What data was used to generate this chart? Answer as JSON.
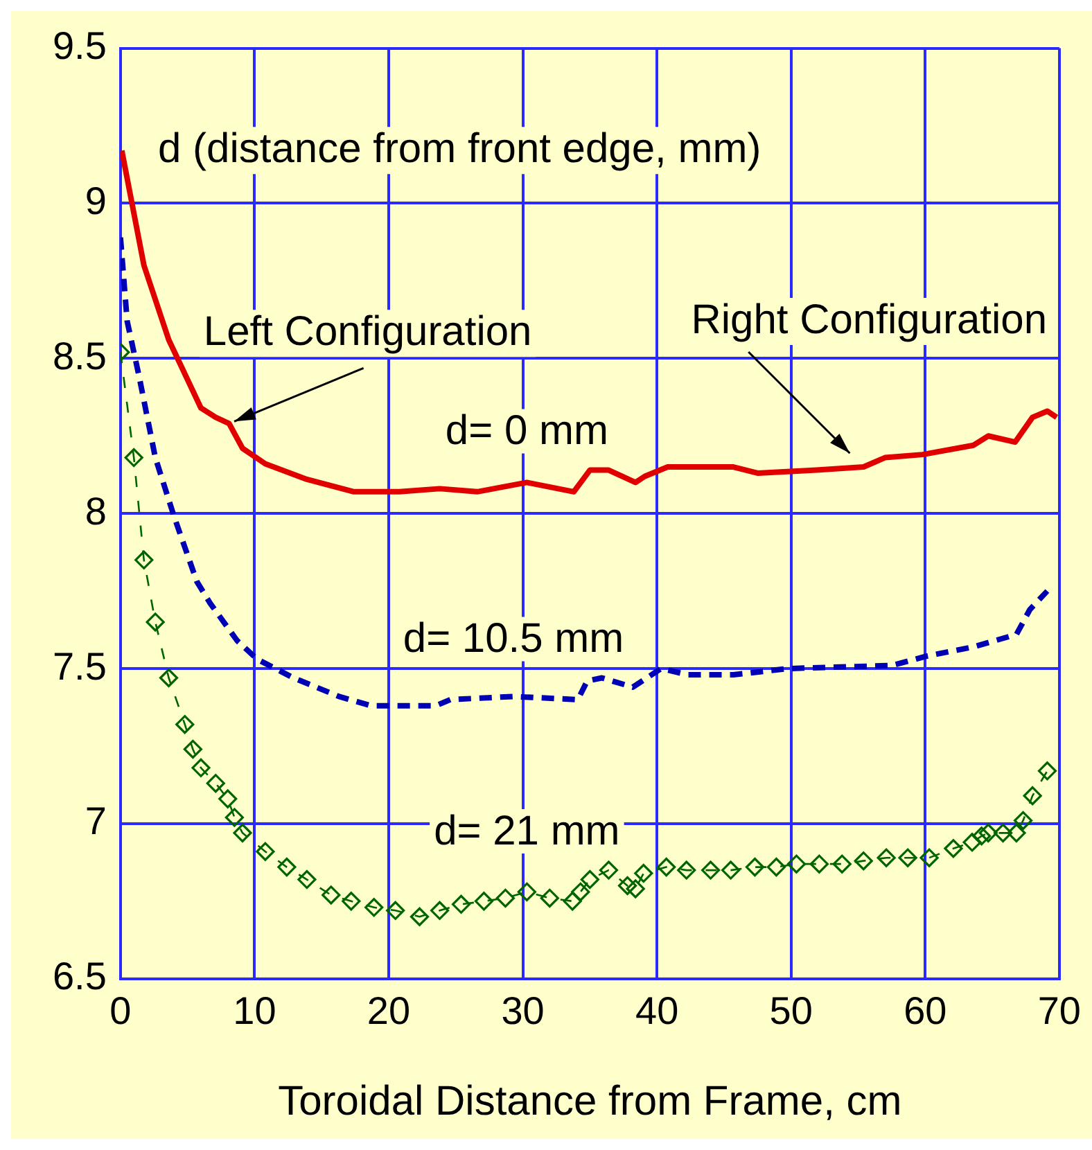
{
  "chart_data": {
    "type": "line",
    "xlabel": "Toroidal Distance from Frame, cm",
    "xlim": [
      0,
      70
    ],
    "xticks": [
      0,
      10,
      20,
      30,
      40,
      50,
      60,
      70
    ],
    "ylim": [
      6.5,
      9.5
    ],
    "yticks": [
      6.5,
      7,
      7.5,
      8,
      8.5,
      9,
      9.5
    ],
    "grid": true,
    "legend": false,
    "annotations": [
      "d (distance from front edge, mm)",
      {
        "text": "Left Configuration",
        "x": 8.1,
        "y": 8.29
      },
      {
        "text": "Right Configuration",
        "x": 55.4,
        "y": 8.15
      }
    ],
    "series": [
      {
        "name": "d= 0 mm",
        "color": "#e00000",
        "marker": "none",
        "line_style": "solid",
        "x": [
          0.1,
          1.75,
          3.6,
          6.0,
          7.1,
          8.1,
          9.1,
          10.8,
          13.9,
          17.4,
          20.8,
          23.8,
          26.6,
          30.3,
          33.8,
          35.0,
          36.4,
          38.4,
          39.1,
          40.8,
          45.7,
          47.5,
          51.9,
          55.4,
          57.0,
          59.8,
          63.6,
          64.7,
          66.7,
          68.0,
          69.1,
          69.8
        ],
        "values": [
          9.17,
          8.8,
          8.56,
          8.34,
          8.31,
          8.29,
          8.21,
          8.16,
          8.11,
          8.07,
          8.07,
          8.08,
          8.07,
          8.1,
          8.07,
          8.14,
          8.14,
          8.1,
          8.12,
          8.15,
          8.15,
          8.13,
          8.14,
          8.15,
          8.18,
          8.19,
          8.22,
          8.25,
          8.23,
          8.31,
          8.33,
          8.31
        ]
      },
      {
        "name": "d= 10.5 mm",
        "color": "#0000b4",
        "marker": "none",
        "line_style": "dashed",
        "x": [
          0.0,
          0.5,
          1.4,
          2.6,
          4.0,
          5.7,
          6.7,
          8.7,
          10.2,
          12.9,
          16.3,
          18.7,
          23.5,
          24.6,
          29.3,
          34.1,
          34.8,
          35.9,
          38.2,
          40.3,
          42.3,
          45.7,
          49.8,
          57.5,
          60.1,
          63.6,
          66.8,
          67.8,
          69.1
        ],
        "values": [
          8.89,
          8.62,
          8.44,
          8.18,
          7.99,
          7.78,
          7.71,
          7.59,
          7.53,
          7.47,
          7.41,
          7.38,
          7.38,
          7.4,
          7.41,
          7.4,
          7.46,
          7.47,
          7.44,
          7.5,
          7.48,
          7.48,
          7.5,
          7.51,
          7.54,
          7.57,
          7.61,
          7.69,
          7.75
        ]
      },
      {
        "name": "d= 21 mm",
        "color": "#006400",
        "marker": "diamond",
        "line_style": "dashed",
        "x": [
          0,
          1.0,
          1.75,
          2.6,
          3.6,
          4.8,
          5.4,
          6.0,
          7.1,
          8.0,
          8.5,
          9.1,
          10.8,
          12.4,
          13.9,
          15.7,
          17.2,
          18.9,
          20.5,
          22.3,
          23.8,
          25.4,
          27.1,
          28.7,
          30.3,
          32.0,
          33.7,
          34.3,
          35.0,
          36.4,
          37.8,
          38.4,
          39.0,
          40.7,
          42.2,
          44.0,
          45.5,
          47.3,
          48.9,
          50.4,
          52.1,
          53.8,
          55.4,
          57.1,
          58.7,
          60.3,
          62.1,
          63.5,
          64.2,
          64.7,
          65.8,
          66.8,
          67.3,
          68.0,
          69.1
        ],
        "values": [
          8.52,
          8.18,
          7.85,
          7.65,
          7.47,
          7.32,
          7.24,
          7.18,
          7.13,
          7.08,
          7.02,
          6.97,
          6.91,
          6.86,
          6.82,
          6.77,
          6.75,
          6.73,
          6.72,
          6.7,
          6.72,
          6.74,
          6.75,
          6.76,
          6.78,
          6.76,
          6.75,
          6.78,
          6.82,
          6.85,
          6.8,
          6.79,
          6.84,
          6.86,
          6.85,
          6.85,
          6.85,
          6.86,
          6.86,
          6.87,
          6.87,
          6.87,
          6.88,
          6.89,
          6.89,
          6.89,
          6.92,
          6.94,
          6.96,
          6.97,
          6.97,
          6.97,
          7.01,
          7.09,
          7.17
        ]
      }
    ]
  }
}
